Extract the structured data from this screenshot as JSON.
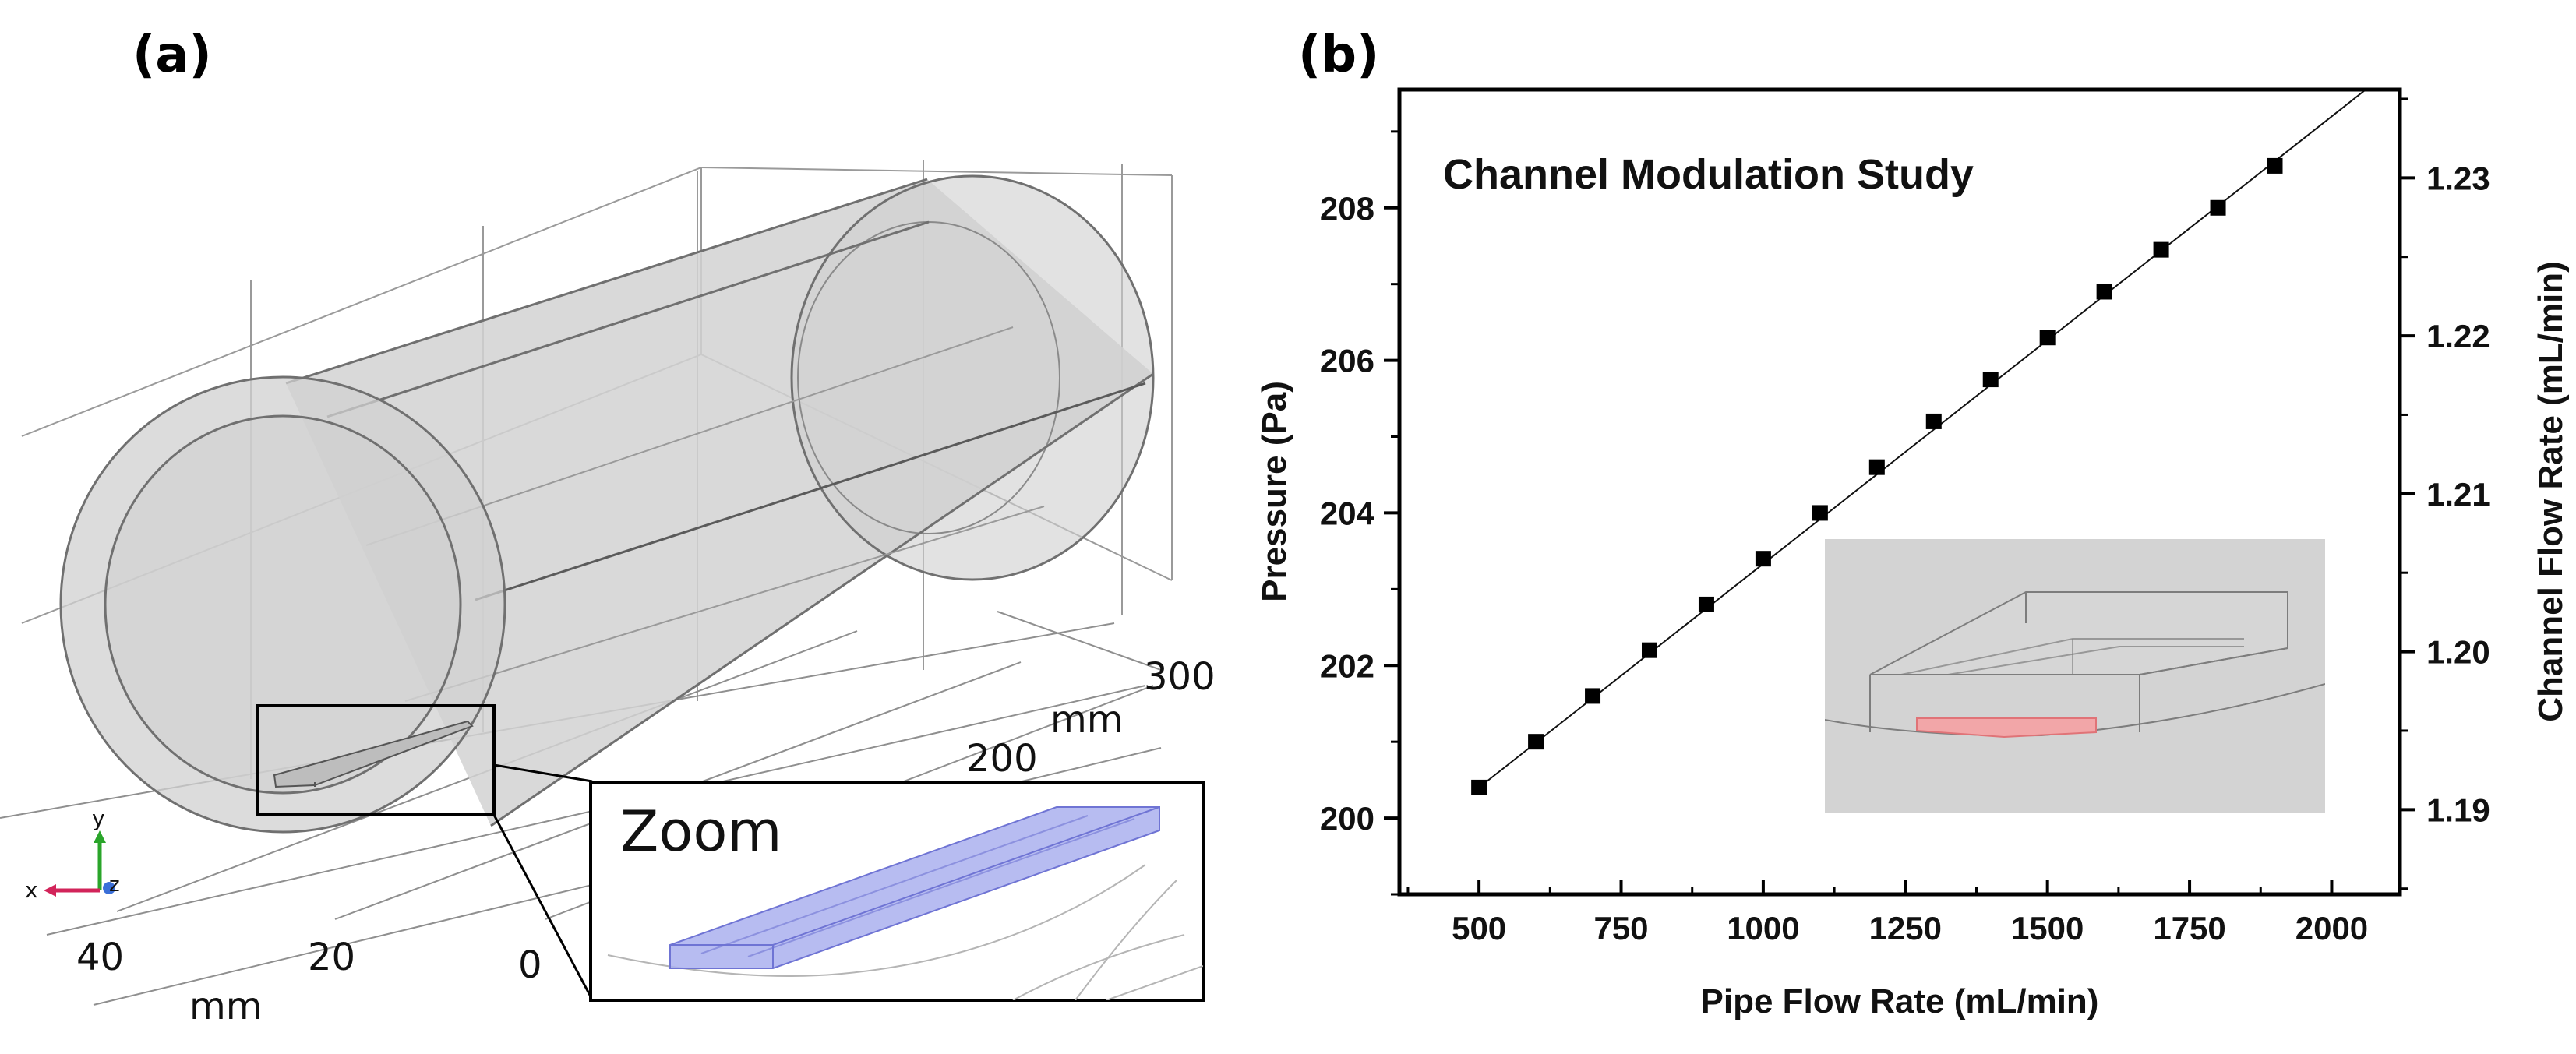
{
  "panel_a": {
    "label": "(a)",
    "depth_unit": "mm",
    "depth_ticks": [
      "300",
      "200"
    ],
    "width_unit": "mm",
    "width_ticks": [
      "40",
      "20",
      "0"
    ],
    "zoom_label": "Zoom",
    "triad": {
      "x": "x",
      "y": "y",
      "z": "z"
    },
    "colors": {
      "pipe_fill": "#d2d2d2",
      "channel_fill": "#aab0ee",
      "channel_edge": "#6f74d4"
    }
  },
  "panel_b": {
    "label": "(b)",
    "inset_colors": {
      "background": "#d3d3d3",
      "highlight": "#f2a6a8"
    }
  },
  "chart_data": {
    "type": "scatter",
    "title": "Channel Modulation Study",
    "xlabel": "Pipe Flow Rate (mL/min)",
    "ylabel": "Pressure (Pa)",
    "y2label": "Channel Flow Rate (mL/min)",
    "xlim": [
      360,
      2120
    ],
    "ylim": [
      199.0,
      209.55
    ],
    "y2lim": [
      1.18464,
      1.23559
    ],
    "xticks": [
      500,
      750,
      1000,
      1250,
      1500,
      1750,
      2000
    ],
    "xtick_labels": [
      "500",
      "750",
      "1000",
      "1250",
      "1500",
      "1750",
      "2000"
    ],
    "yticks": [
      200,
      202,
      204,
      206,
      208
    ],
    "ytick_labels": [
      "200",
      "202",
      "204",
      "206",
      "208"
    ],
    "y2ticks": [
      1.19,
      1.2,
      1.21,
      1.22,
      1.23
    ],
    "y2tick_labels": [
      "1.19",
      "1.20",
      "1.21",
      "1.22",
      "1.23"
    ],
    "series": [
      {
        "name": "Pressure",
        "marker": "square",
        "line": "fit",
        "x": [
          500,
          600,
          700,
          800,
          900,
          1000,
          1100,
          1200,
          1300,
          1400,
          1500,
          1600,
          1700,
          1800,
          1900
        ],
        "y": [
          200.4,
          201.0,
          201.6,
          202.2,
          202.8,
          203.4,
          204.0,
          204.6,
          205.2,
          205.75,
          206.3,
          206.9,
          207.45,
          208.0,
          208.55
        ]
      }
    ],
    "fit_line": {
      "x": [
        500,
        2060
      ],
      "y": [
        200.4,
        209.55
      ]
    }
  }
}
